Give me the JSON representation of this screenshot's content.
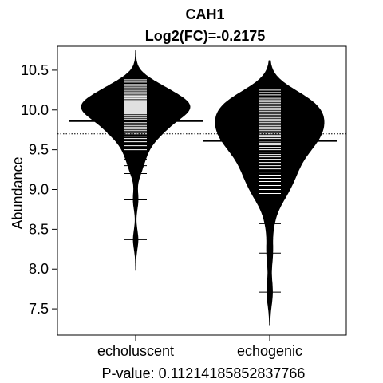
{
  "chart_data": {
    "type": "beanplot",
    "title": "CAH1",
    "subtitle": "Log2(FC)=-0.2175",
    "xlabel": "P-value: 0.11214185852837766",
    "ylabel": "Abundance",
    "ylim": [
      7.17,
      10.8
    ],
    "yticks": [
      "7.5",
      "8.0",
      "8.5",
      "9.0",
      "9.5",
      "10.0",
      "10.5"
    ],
    "ytick_values": [
      7.5,
      8.0,
      8.5,
      9.0,
      9.5,
      10.0,
      10.5
    ],
    "categories": [
      "echoluscent",
      "echogenic"
    ],
    "overall_mean": 9.7,
    "grid": false,
    "groups": [
      {
        "name": "echoluscent",
        "mean": 9.86,
        "min": 7.98,
        "max": 10.75,
        "mode": 10.12,
        "observations": [
          10.38,
          10.35,
          10.32,
          10.3,
          10.28,
          10.26,
          10.24,
          10.22,
          10.2,
          10.18,
          10.17,
          10.15,
          10.14,
          10.12,
          10.11,
          10.1,
          10.09,
          10.08,
          10.07,
          10.06,
          10.05,
          10.04,
          10.03,
          10.02,
          10.01,
          10.0,
          9.99,
          9.98,
          9.97,
          9.96,
          9.95,
          9.93,
          9.92,
          9.9,
          9.88,
          9.86,
          9.84,
          9.82,
          9.8,
          9.78,
          9.76,
          9.74,
          9.72,
          9.7,
          9.67,
          9.64,
          9.6,
          9.55,
          9.5,
          9.45,
          9.38,
          9.3,
          9.2,
          8.87,
          8.37
        ]
      },
      {
        "name": "echogenic",
        "mean": 9.61,
        "min": 7.3,
        "max": 10.62,
        "mode": 9.86,
        "observations": [
          10.25,
          10.22,
          10.19,
          10.16,
          10.14,
          10.12,
          10.1,
          10.08,
          10.06,
          10.04,
          10.02,
          10.0,
          9.98,
          9.96,
          9.94,
          9.92,
          9.9,
          9.88,
          9.86,
          9.84,
          9.82,
          9.8,
          9.78,
          9.76,
          9.74,
          9.72,
          9.7,
          9.68,
          9.66,
          9.64,
          9.62,
          9.6,
          9.58,
          9.56,
          9.53,
          9.5,
          9.47,
          9.44,
          9.41,
          9.38,
          9.34,
          9.3,
          9.26,
          9.22,
          9.18,
          9.14,
          9.1,
          9.05,
          9.0,
          8.95,
          8.88,
          8.8,
          8.57,
          8.2,
          7.71
        ]
      }
    ]
  }
}
